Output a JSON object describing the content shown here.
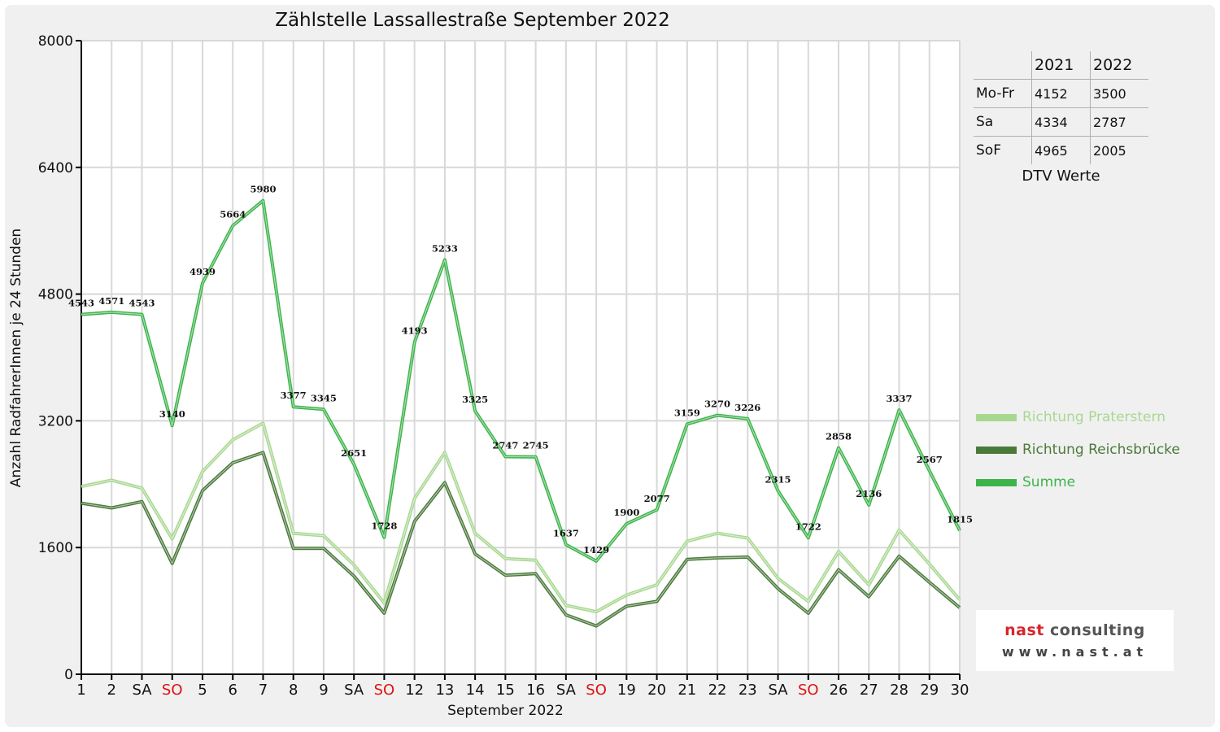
{
  "chart_data": {
    "type": "line",
    "title": "Zählstelle Lassallestraße September 2022",
    "xlabel": "September 2022",
    "ylabel": "Anzahl RadfahrerInnen je 24 Stunden",
    "ylim": [
      0,
      8000
    ],
    "yticks": [
      0,
      1600,
      3200,
      4800,
      6400,
      8000
    ],
    "grid": true,
    "legend_position": "right",
    "categories": [
      "1",
      "2",
      "SA",
      "SO",
      "5",
      "6",
      "7",
      "8",
      "9",
      "SA",
      "SO",
      "12",
      "13",
      "14",
      "15",
      "16",
      "SA",
      "SO",
      "19",
      "20",
      "21",
      "22",
      "23",
      "SA",
      "SO",
      "26",
      "27",
      "28",
      "29",
      "30"
    ],
    "highlighted_categories": [
      3,
      10,
      17,
      24
    ],
    "highlight_color": "#e01010",
    "series": [
      {
        "name": "Richtung Praterstern",
        "color": "#a8d890",
        "style": "double",
        "values": [
          2370,
          2450,
          2350,
          1710,
          2560,
          2960,
          3170,
          1780,
          1750,
          1380,
          900,
          2220,
          2800,
          1780,
          1460,
          1440,
          870,
          790,
          1000,
          1130,
          1680,
          1780,
          1720,
          1210,
          920,
          1550,
          1130,
          1820,
          1390,
          940
        ]
      },
      {
        "name": "Richtung Reichsbrücke",
        "color": "#4a7a3a",
        "style": "double",
        "values": [
          2160,
          2100,
          2180,
          1400,
          2320,
          2670,
          2800,
          1590,
          1590,
          1240,
          770,
          1930,
          2420,
          1520,
          1250,
          1270,
          750,
          610,
          860,
          920,
          1450,
          1470,
          1480,
          1080,
          770,
          1320,
          980,
          1490,
          1160,
          840
        ]
      },
      {
        "name": "Summe",
        "color": "#3cb44a",
        "style": "double",
        "values": [
          4543,
          4571,
          4543,
          3140,
          4939,
          5664,
          5980,
          3377,
          3345,
          2651,
          1728,
          4193,
          5233,
          3325,
          2747,
          2745,
          1637,
          1429,
          1900,
          2077,
          3159,
          3270,
          3226,
          2315,
          1722,
          2858,
          2136,
          3337,
          2567,
          1815
        ]
      }
    ],
    "data_labels": [
      "4543",
      "4571",
      "4543",
      "3140",
      "4939",
      "5664",
      "5980",
      "3377",
      "3345",
      "2651",
      "1728",
      "4193",
      "5233",
      "3325",
      "2747",
      "2745",
      "1637",
      "1429",
      "1900",
      "2077",
      "3159",
      "3270",
      "3226",
      "2315",
      "1722",
      "2858",
      "2136",
      "3337",
      "2567",
      "1815"
    ]
  },
  "dtv": {
    "headers": [
      "",
      "2021",
      "2022"
    ],
    "rows": [
      {
        "label": "Mo-Fr",
        "v2021": "4152",
        "v2022": "3500"
      },
      {
        "label": "Sa",
        "v2021": "4334",
        "v2022": "2787"
      },
      {
        "label": "SoF",
        "v2021": "4965",
        "v2022": "2005"
      }
    ],
    "caption": "DTV Werte"
  },
  "legend": [
    {
      "label": "Richtung Praterstern",
      "color": "#a8d890"
    },
    {
      "label": "Richtung Reichsbrücke",
      "color": "#4a7a3a"
    },
    {
      "label": "Summe",
      "color": "#3cb44a"
    }
  ],
  "logo": {
    "accent": "nast",
    "main": " consulting",
    "url": "www.nast.at",
    "accent_color": "#d6262b"
  }
}
